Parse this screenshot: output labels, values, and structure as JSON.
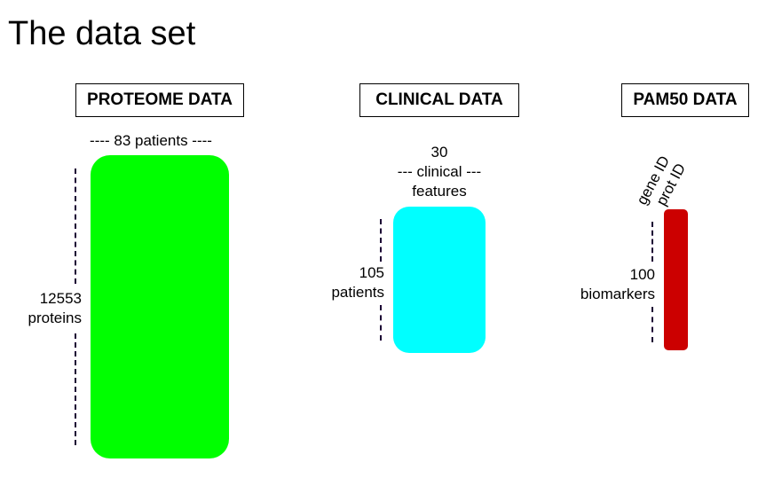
{
  "title": "The data set",
  "proteome": {
    "header": "PROTEOME DATA",
    "columns_label": "---- 83 patients ----",
    "rows_label": [
      "12553",
      "proteins"
    ],
    "color": "#00ff00"
  },
  "clinical": {
    "header": "CLINICAL DATA",
    "columns_label": [
      "30",
      "--- clinical ---",
      "features"
    ],
    "rows_label": [
      "105",
      "patients"
    ],
    "color": "#00ffff"
  },
  "pam50": {
    "header": "PAM50 DATA",
    "column_labels": [
      "gene ID",
      "prot ID"
    ],
    "rows_label": [
      "100",
      "biomarkers"
    ],
    "color": "#cc0000"
  }
}
